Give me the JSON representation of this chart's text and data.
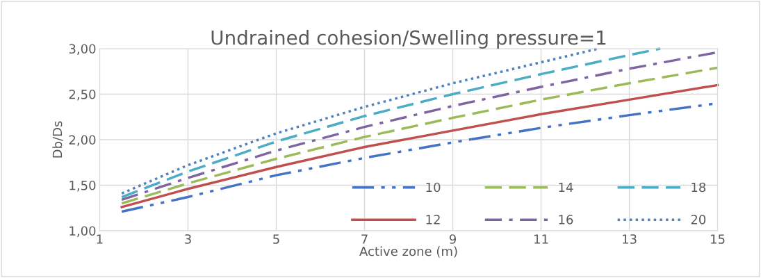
{
  "chart_data": {
    "type": "line",
    "title": "Undrained cohesion/Swelling pressure=1",
    "xlabel": "Active zone (m)",
    "ylabel": "Db/Ds",
    "xlim": [
      1,
      15
    ],
    "xticks": [
      1,
      3,
      5,
      7,
      9,
      11,
      13,
      15
    ],
    "ylim": [
      1,
      3
    ],
    "yticks": [
      {
        "value": 1,
        "label": "1,00"
      },
      {
        "value": 1.5,
        "label": "1,50"
      },
      {
        "value": 2,
        "label": "2,00"
      },
      {
        "value": 2.5,
        "label": "2,50"
      },
      {
        "value": 3,
        "label": "3,00"
      }
    ],
    "grid": true,
    "legend": "bottom right",
    "marker": "none",
    "series": [
      {
        "name": "10",
        "color": "#4472c4",
        "line_style": "dashdotdot",
        "x": [
          1.5,
          3,
          5,
          7,
          9,
          11,
          13,
          15
        ],
        "values": [
          1.21,
          1.37,
          1.61,
          1.8,
          1.97,
          2.13,
          2.27,
          2.4
        ]
      },
      {
        "name": "12",
        "color": "#c0504d",
        "line_style": "solid",
        "x": [
          1.5,
          3,
          5,
          7,
          9,
          11,
          13,
          15
        ],
        "values": [
          1.26,
          1.46,
          1.7,
          1.92,
          2.1,
          2.28,
          2.44,
          2.6
        ]
      },
      {
        "name": "14",
        "color": "#9bbb59",
        "line_style": "dashed",
        "x": [
          1.5,
          3,
          5,
          7,
          9,
          11,
          13,
          15
        ],
        "values": [
          1.3,
          1.52,
          1.79,
          2.03,
          2.24,
          2.44,
          2.62,
          2.79
        ]
      },
      {
        "name": "16",
        "color": "#8064a2",
        "line_style": "dashdot",
        "x": [
          1.5,
          3,
          5,
          7,
          9,
          11,
          13,
          15
        ],
        "values": [
          1.34,
          1.58,
          1.88,
          2.14,
          2.37,
          2.58,
          2.78,
          2.96
        ]
      },
      {
        "name": "18",
        "color": "#4bacc6",
        "line_style": "dashed",
        "x": [
          1.5,
          3,
          5,
          7,
          9,
          11,
          13,
          13.7
        ],
        "values": [
          1.37,
          1.65,
          1.98,
          2.26,
          2.5,
          2.72,
          2.93,
          3.0
        ]
      },
      {
        "name": "20",
        "color": "#4f81bd",
        "line_style": "dotted",
        "x": [
          1.5,
          3,
          5,
          7,
          9,
          11,
          12.3
        ],
        "values": [
          1.41,
          1.72,
          2.07,
          2.36,
          2.62,
          2.85,
          3.0
        ]
      }
    ]
  }
}
